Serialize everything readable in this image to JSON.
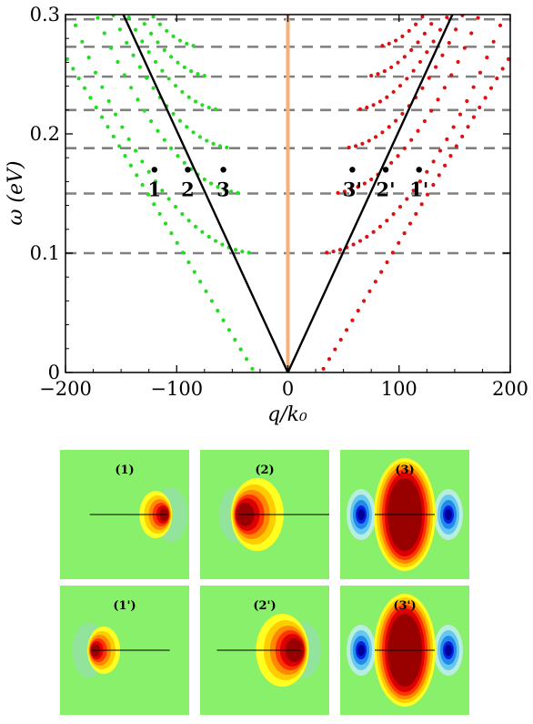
{
  "chart_data": {
    "type": "scatter",
    "title": "",
    "xlabel": "q/k₀",
    "ylabel": "ω (eV)",
    "xlim": [
      -200,
      200
    ],
    "ylim": [
      0,
      0.3
    ],
    "x_ticks": [
      -200,
      -100,
      0,
      100,
      200
    ],
    "x_tick_labels": [
      "−200",
      "−100",
      "0",
      "100",
      "200"
    ],
    "y_ticks": [
      0,
      0.1,
      0.2,
      0.3
    ],
    "y_tick_labels": [
      "0",
      "0.1",
      "0.2",
      "0.3"
    ],
    "grid": false,
    "dashed_levels": [
      0.1,
      0.15,
      0.188,
      0.22,
      0.248,
      0.273,
      0.296
    ],
    "vertical_line": {
      "x": 0,
      "color": "#f4b27a"
    },
    "light_cone": {
      "x_at_top": 148,
      "color": "#000000"
    },
    "series": [
      {
        "color": "#22dd22",
        "side": "left",
        "branches": [
          {
            "slope": 0.00156,
            "xmin": -200,
            "xmax": -32
          },
          {
            "floor": 0.1,
            "a": 7.1e-06,
            "xmax": -35,
            "xmin": -170
          },
          {
            "floor": 0.15,
            "a": 8.2e-06,
            "xmax": -45,
            "xmin": -150
          },
          {
            "floor": 0.188,
            "a": 9.2e-06,
            "xmax": -55,
            "xmin": -130
          },
          {
            "floor": 0.22,
            "a": 1.05e-05,
            "xmax": -65,
            "xmin": -115
          },
          {
            "floor": 0.248,
            "a": 1.15e-05,
            "xmax": -75,
            "xmin": -100
          },
          {
            "floor": 0.273,
            "a": 1.3e-05,
            "xmax": -85,
            "xmin": -90
          }
        ]
      },
      {
        "color": "#dd1111",
        "side": "right",
        "branches": [
          {
            "slope": 0.00156,
            "xmin": 32,
            "xmax": 200
          },
          {
            "floor": 0.1,
            "a": 7.1e-06,
            "xmin": 35,
            "xmax": 170
          },
          {
            "floor": 0.15,
            "a": 8.2e-06,
            "xmin": 45,
            "xmax": 150
          },
          {
            "floor": 0.188,
            "a": 9.2e-06,
            "xmin": 55,
            "xmax": 130
          },
          {
            "floor": 0.22,
            "a": 1.05e-05,
            "xmin": 65,
            "xmax": 115
          },
          {
            "floor": 0.248,
            "a": 1.15e-05,
            "xmin": 75,
            "xmax": 100
          },
          {
            "floor": 0.273,
            "a": 1.3e-05,
            "xmin": 85,
            "xmax": 90
          }
        ]
      }
    ],
    "points": [
      {
        "label": "1",
        "x": -120,
        "y": 0.17
      },
      {
        "label": "2",
        "x": -90,
        "y": 0.17
      },
      {
        "label": "3",
        "x": -58,
        "y": 0.17
      },
      {
        "label": "3'",
        "x": 58,
        "y": 0.17
      },
      {
        "label": "2'",
        "x": 88,
        "y": 0.17
      },
      {
        "label": "1'",
        "x": 118,
        "y": 0.17
      }
    ]
  },
  "panels": [
    {
      "label": "(1)",
      "type": "single",
      "dir": 1,
      "cx": 0.83,
      "length": 0.6
    },
    {
      "label": "(2)",
      "type": "single",
      "dir": -1,
      "cx": 0.3,
      "length": 0.7
    },
    {
      "label": "(3)",
      "type": "sym",
      "cx": 0.5,
      "length": 0.6
    },
    {
      "label": "(1')",
      "type": "single",
      "dir": -1,
      "cx": 0.25,
      "length": 0.6
    },
    {
      "label": "(2')",
      "type": "single",
      "dir": 1,
      "cx": 0.78,
      "length": 0.65
    },
    {
      "label": "(3')",
      "type": "sym",
      "cx": 0.5,
      "length": 0.6
    }
  ]
}
